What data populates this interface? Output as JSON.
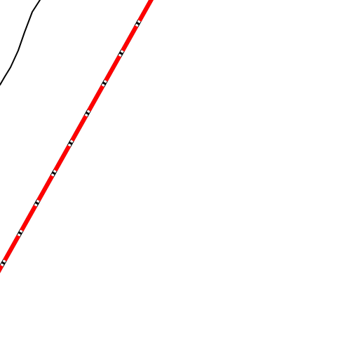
{
  "map": {
    "background_color": "#ffffff",
    "features": [
      {
        "kind": "boundary-line",
        "icon": "thin-black-line",
        "stroke_color": "#000000"
      },
      {
        "kind": "railway-line",
        "icon": "dashed-red-black-line",
        "primary_color": "#ff0000",
        "secondary_color": "#000000",
        "separator_color": "#ffffff"
      }
    ]
  }
}
